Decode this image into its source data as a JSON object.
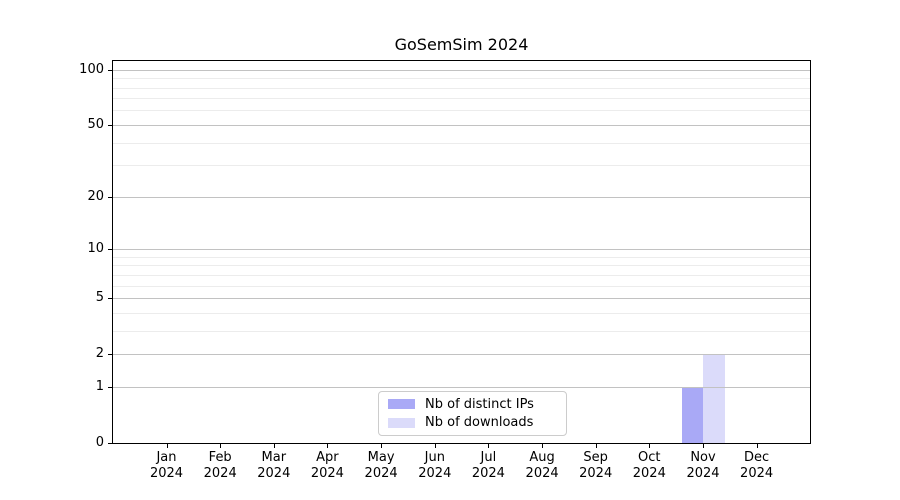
{
  "figure": {
    "background": "#ffffff"
  },
  "chart_data": {
    "type": "bar",
    "title": "GoSemSim 2024",
    "x_axis": {
      "months": [
        "Jan",
        "Feb",
        "Mar",
        "Apr",
        "May",
        "Jun",
        "Jul",
        "Aug",
        "Sep",
        "Oct",
        "Nov",
        "Dec"
      ],
      "year": "2024"
    },
    "y_axis": {
      "scale": "log1p",
      "tick_values": [
        0,
        1,
        2,
        5,
        10,
        20,
        50,
        100
      ],
      "minor_gridline_values": [
        3,
        4,
        6,
        7,
        8,
        9,
        30,
        40,
        60,
        70,
        80,
        90
      ],
      "ylim": [
        0,
        111.4
      ],
      "grid": "horizontal"
    },
    "series": [
      {
        "name": "Nb of distinct IPs",
        "color": "#a9a9f6",
        "values": [
          0,
          0,
          0,
          0,
          0,
          0,
          0,
          0,
          0,
          0,
          1,
          0
        ]
      },
      {
        "name": "Nb of downloads",
        "color": "#dbdbfa",
        "values": [
          0,
          0,
          0,
          0,
          0,
          0,
          0,
          0,
          0,
          0,
          2,
          0
        ]
      }
    ],
    "legend": {
      "position": "lower-center"
    }
  },
  "colors": {
    "major_grid": "#c2c2c2",
    "minor_grid": "#ececec",
    "axis": "#000000",
    "text": "#000000",
    "legend_border": "#cccccc"
  }
}
